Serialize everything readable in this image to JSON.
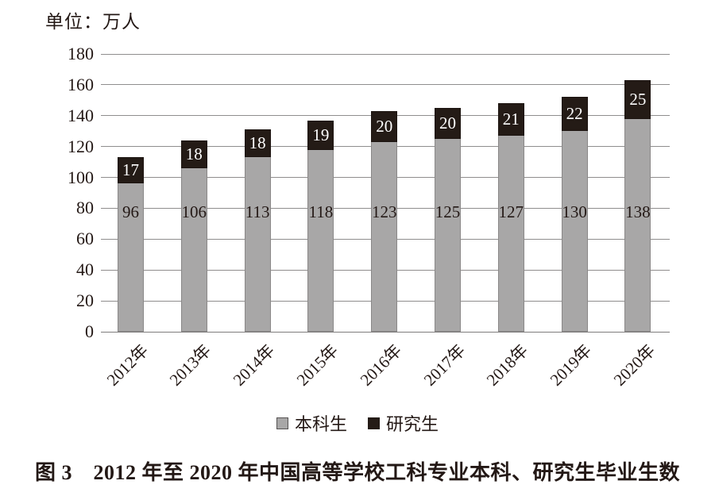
{
  "unit_label": "单位：万人",
  "chart_data": {
    "type": "bar",
    "stacked": true,
    "unit_label": "单位：万人",
    "categories": [
      "2012年",
      "2013年",
      "2014年",
      "2015年",
      "2016年",
      "2017年",
      "2018年",
      "2019年",
      "2020年"
    ],
    "series": [
      {
        "name": "本科生",
        "values": [
          96,
          106,
          113,
          118,
          123,
          125,
          127,
          130,
          138
        ],
        "color": "#a8a7a7",
        "label_color": "#231815"
      },
      {
        "name": "研究生",
        "values": [
          17,
          18,
          18,
          19,
          20,
          20,
          21,
          22,
          25
        ],
        "color": "#241b16",
        "label_color": "#ffffff"
      }
    ],
    "ylim": [
      0,
      180
    ],
    "ytick_step": 20,
    "yticks": [
      0,
      20,
      40,
      60,
      80,
      100,
      120,
      140,
      160,
      180
    ],
    "grid": true,
    "gridline_color": "#8f8d8d",
    "legend_position": "bottom",
    "xtick_rotation": -45
  },
  "caption": "图 3　2012 年至 2020 年中国高等学校工科专业本科、研究生毕业生数"
}
